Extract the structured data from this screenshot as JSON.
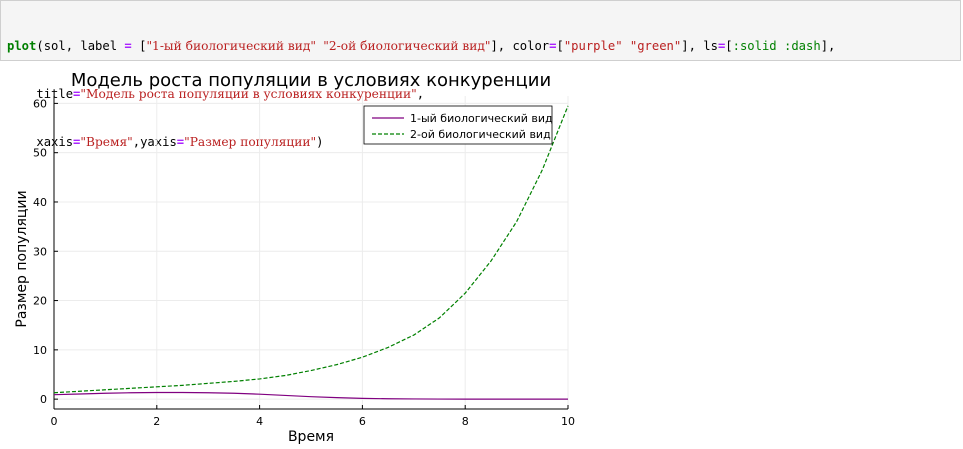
{
  "code": {
    "line1": {
      "fn": "plot",
      "p1": "(sol, label ",
      "eq1": "=",
      "p2": " [",
      "s1": "\"1-ый биологический вид\"",
      "p3": " ",
      "s2": "\"2-ой биологический вид\"",
      "p4": "], color",
      "eq2": "=",
      "p5": "[",
      "s3": "\"purple\"",
      "p6": " ",
      "s4": "\"green\"",
      "p7": "], ls",
      "eq3": "=",
      "p8": "[",
      "sym1": ":solid",
      "p9": " ",
      "sym2": ":dash",
      "p10": "],"
    },
    "line2": {
      "indent": "    ",
      "k": "title",
      "eq": "=",
      "s": "\"Модель роста популяции в условиях конкуренции\"",
      "p": ","
    },
    "line3": {
      "indent": "    ",
      "k1": "xaxis",
      "eq1": "=",
      "s1": "\"Время\"",
      "p1": ",",
      "k2": "yaxis",
      "eq2": "=",
      "s2": "\"Размер популяции\"",
      "p2": ")"
    }
  },
  "chart_data": {
    "type": "line",
    "title": "Модель роста популяции в условиях конкуренции",
    "xlabel": "Время",
    "ylabel": "Размер популяции",
    "xlim": [
      0,
      10
    ],
    "ylim": [
      -2,
      61.5
    ],
    "x_ticks": [
      0,
      2,
      4,
      6,
      8,
      10
    ],
    "y_ticks": [
      0,
      10,
      20,
      30,
      40,
      50,
      60
    ],
    "grid": true,
    "legend_position": "top-right",
    "x": [
      0,
      0.5,
      1,
      1.5,
      2,
      2.5,
      3,
      3.5,
      4,
      4.5,
      5,
      5.5,
      6,
      6.5,
      7,
      7.5,
      8,
      8.5,
      9,
      9.5,
      10
    ],
    "series": [
      {
        "name": "1-ый биологический вид",
        "color": "#800080",
        "style": "solid",
        "values": [
          0.9,
          1.05,
          1.2,
          1.3,
          1.35,
          1.35,
          1.3,
          1.2,
          1.0,
          0.75,
          0.5,
          0.3,
          0.15,
          0.08,
          0.04,
          0.02,
          0.01,
          0.005,
          0.0,
          0.0,
          0.0
        ]
      },
      {
        "name": "2-ой биологический вид",
        "color": "#008000",
        "style": "dash",
        "values": [
          1.3,
          1.6,
          1.9,
          2.2,
          2.5,
          2.8,
          3.2,
          3.6,
          4.1,
          4.8,
          5.8,
          7.0,
          8.5,
          10.5,
          13.0,
          16.5,
          21.5,
          28.0,
          36.0,
          46.5,
          59.5
        ]
      }
    ]
  }
}
